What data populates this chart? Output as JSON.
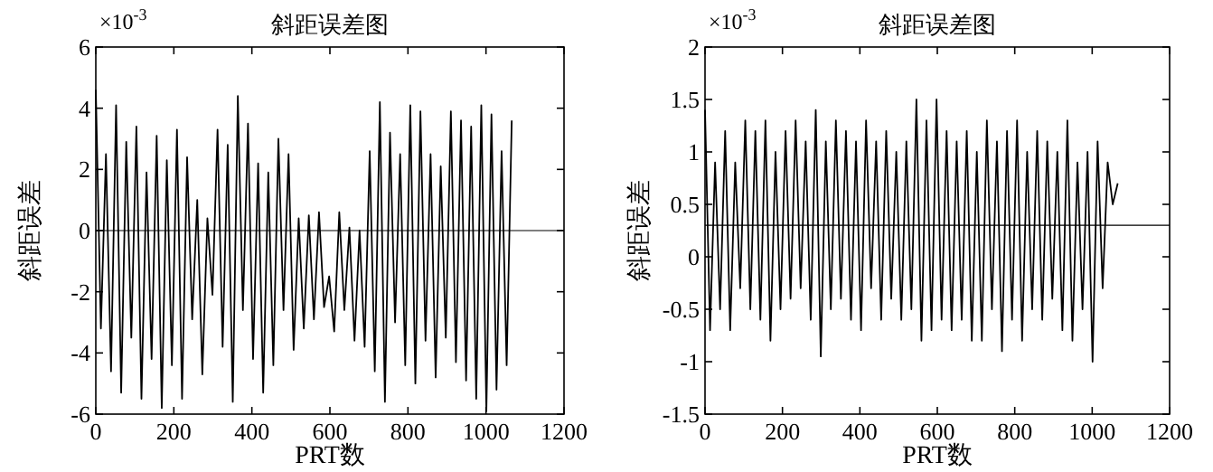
{
  "chart_data": [
    {
      "type": "line",
      "title": "斜距误差图",
      "xlabel": "PRT数",
      "ylabel": "斜距误差",
      "annotations": [
        "×10$^{-3}$"
      ],
      "x": [
        0,
        13,
        26,
        39,
        52,
        65,
        78,
        91,
        104,
        117,
        130,
        143,
        156,
        169,
        182,
        195,
        208,
        221,
        234,
        247,
        260,
        273,
        286,
        299,
        312,
        325,
        338,
        351,
        364,
        377,
        390,
        403,
        416,
        429,
        442,
        455,
        468,
        481,
        494,
        507,
        520,
        533,
        546,
        559,
        572,
        585,
        598,
        611,
        624,
        637,
        650,
        663,
        676,
        689,
        702,
        715,
        728,
        741,
        754,
        767,
        780,
        793,
        806,
        819,
        832,
        845,
        858,
        871,
        884,
        897,
        910,
        923,
        936,
        949,
        962,
        975,
        988,
        1001,
        1014,
        1027,
        1040,
        1053,
        1066
      ],
      "series": [
        {
          "color": "#000000",
          "values": [
            4.6,
            -3.2,
            2.5,
            -4.6,
            4.1,
            -5.3,
            2.9,
            -3.5,
            3.4,
            -5.5,
            1.9,
            -4.2,
            3.1,
            -5.8,
            2.3,
            -4.4,
            3.3,
            -5.5,
            2.4,
            -2.9,
            1.0,
            -4.7,
            0.4,
            -2.1,
            3.3,
            -3.8,
            2.8,
            -5.6,
            4.4,
            -2.6,
            3.5,
            -4.2,
            2.2,
            -5.3,
            1.9,
            -4.4,
            3.0,
            -2.6,
            2.5,
            -3.9,
            0.4,
            -3.2,
            0.5,
            -2.9,
            0.6,
            -2.5,
            -1.5,
            -3.3,
            0.6,
            -2.6,
            0.1,
            -3.6,
            0.0,
            -3.8,
            2.6,
            -4.6,
            4.2,
            -5.6,
            3.2,
            -3.0,
            2.5,
            -4.4,
            4.1,
            -5.0,
            3.9,
            -3.6,
            2.5,
            -4.8,
            2.1,
            -3.5,
            3.9,
            -4.3,
            3.6,
            -4.9,
            3.4,
            -5.5,
            4.1,
            -5.9,
            3.8,
            -5.2,
            2.6,
            -4.4,
            3.6
          ]
        }
      ],
      "ref_lines": [
        {
          "axis": "y",
          "value": 0,
          "color": "#000000"
        }
      ],
      "xlim": [
        0,
        1200
      ],
      "ylim": [
        -6,
        6
      ],
      "xticks": [
        0,
        200,
        400,
        600,
        800,
        1000,
        1200
      ],
      "yticks": [
        -6,
        -4,
        -2,
        0,
        2,
        4,
        6
      ]
    },
    {
      "type": "line",
      "title": "斜距误差图",
      "xlabel": "PRT数",
      "ylabel": "斜距误差",
      "annotations": [
        "×10$^{-3}$"
      ],
      "x": [
        0,
        13,
        26,
        39,
        52,
        65,
        78,
        91,
        104,
        117,
        130,
        143,
        156,
        169,
        182,
        195,
        208,
        221,
        234,
        247,
        260,
        273,
        286,
        299,
        312,
        325,
        338,
        351,
        364,
        377,
        390,
        403,
        416,
        429,
        442,
        455,
        468,
        481,
        494,
        507,
        520,
        533,
        546,
        559,
        572,
        585,
        598,
        611,
        624,
        637,
        650,
        663,
        676,
        689,
        702,
        715,
        728,
        741,
        754,
        767,
        780,
        793,
        806,
        819,
        832,
        845,
        858,
        871,
        884,
        897,
        910,
        923,
        936,
        949,
        962,
        975,
        988,
        1001,
        1014,
        1027,
        1040,
        1053,
        1066
      ],
      "series": [
        {
          "color": "#000000",
          "values": [
            1.4,
            -0.7,
            0.9,
            -0.5,
            1.2,
            -0.7,
            0.9,
            -0.3,
            1.3,
            -0.5,
            1.2,
            -0.6,
            1.3,
            -0.8,
            1.0,
            -0.5,
            1.2,
            -0.4,
            1.3,
            -0.3,
            1.1,
            -0.6,
            1.4,
            -0.95,
            1.1,
            -0.5,
            1.3,
            -0.4,
            1.2,
            -0.6,
            1.1,
            -0.7,
            1.3,
            -0.3,
            1.1,
            -0.6,
            1.2,
            -0.4,
            1.0,
            -0.6,
            1.1,
            -0.5,
            1.5,
            -0.8,
            1.3,
            -0.7,
            1.5,
            -0.6,
            1.2,
            -0.7,
            1.1,
            -0.6,
            1.2,
            -0.8,
            1.0,
            -0.8,
            1.3,
            -0.5,
            1.1,
            -0.9,
            1.2,
            -0.6,
            1.3,
            -0.8,
            1.0,
            -0.5,
            1.2,
            -0.6,
            1.1,
            -0.4,
            1.0,
            -0.7,
            1.3,
            -0.8,
            0.9,
            -0.5,
            1.0,
            -1.0,
            1.1,
            -0.3,
            0.9,
            0.5,
            0.7
          ]
        }
      ],
      "ref_lines": [
        {
          "axis": "y",
          "value": 0.3,
          "color": "#000000"
        }
      ],
      "xlim": [
        0,
        1200
      ],
      "ylim": [
        -1.5,
        2
      ],
      "xticks": [
        0,
        200,
        400,
        600,
        800,
        1000,
        1200
      ],
      "yticks": [
        -1.5,
        -1,
        -0.5,
        0,
        0.5,
        1,
        1.5,
        2
      ]
    }
  ]
}
